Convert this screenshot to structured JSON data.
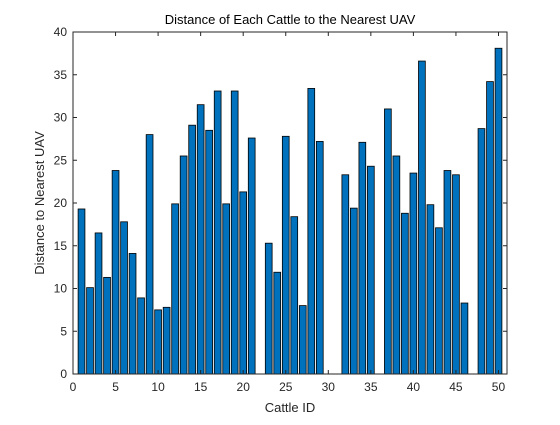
{
  "chart_data": {
    "type": "bar",
    "title": "Distance of Each Cattle to the Nearest UAV",
    "xlabel": "Cattle ID",
    "ylabel": "Distance to Nearest UAV",
    "xlim": [
      0,
      51
    ],
    "ylim": [
      0,
      40
    ],
    "xticks": [
      0,
      5,
      10,
      15,
      20,
      25,
      30,
      35,
      40,
      45,
      50
    ],
    "yticks": [
      0,
      5,
      10,
      15,
      20,
      25,
      30,
      35,
      40
    ],
    "grid": false,
    "legend": "none",
    "bar_color": "#0072BD",
    "edge_color": "#000000",
    "x": [
      1,
      2,
      3,
      4,
      5,
      6,
      7,
      8,
      9,
      10,
      11,
      12,
      13,
      14,
      15,
      16,
      17,
      18,
      19,
      20,
      21,
      22,
      23,
      24,
      25,
      26,
      27,
      28,
      29,
      30,
      31,
      32,
      33,
      34,
      35,
      36,
      37,
      38,
      39,
      40,
      41,
      42,
      43,
      44,
      45,
      46,
      47,
      48,
      49,
      50
    ],
    "values": [
      19.3,
      10.1,
      16.5,
      11.3,
      23.8,
      17.8,
      14.1,
      8.9,
      28.0,
      7.5,
      7.8,
      19.9,
      25.5,
      29.1,
      31.5,
      28.5,
      33.1,
      19.9,
      33.1,
      21.3,
      27.6,
      0,
      15.3,
      11.9,
      27.8,
      18.4,
      8.0,
      33.4,
      27.2,
      0,
      0,
      23.3,
      19.4,
      27.1,
      24.3,
      0,
      31.0,
      25.5,
      18.8,
      23.5,
      36.6,
      19.8,
      17.1,
      23.8,
      23.3,
      8.3,
      0,
      28.7,
      34.2,
      38.1
    ]
  }
}
